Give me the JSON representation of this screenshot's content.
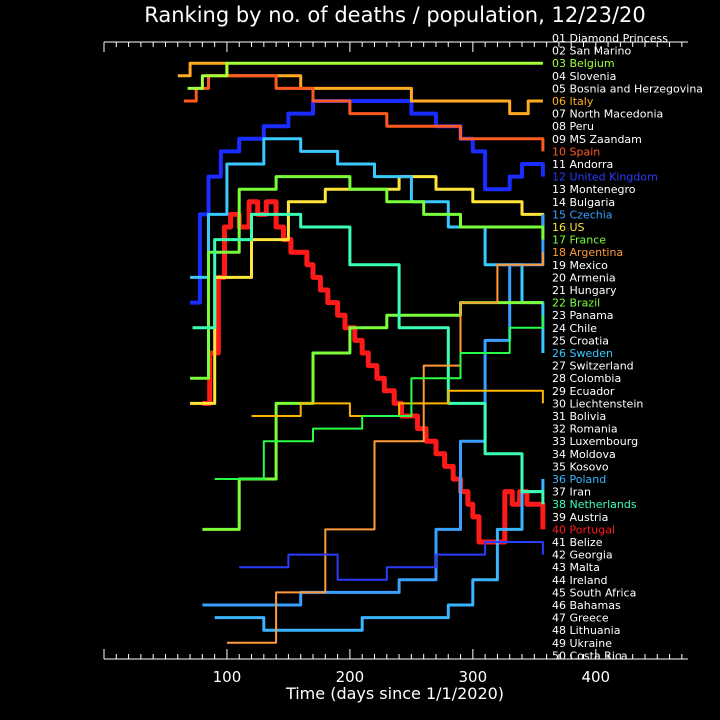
{
  "chart_data": {
    "type": "line",
    "title": "Ranking by no. of deaths / population, 12/23/20",
    "xlabel": "Time (days since 1/1/2020)",
    "xlim": [
      0,
      475
    ],
    "ylim": [
      1,
      50
    ],
    "x_ticks": [
      100,
      200,
      300,
      400
    ],
    "background": "#000000",
    "ranking": [
      {
        "rank": 1,
        "label": "01 Diamond Princess",
        "color": "#ffffff"
      },
      {
        "rank": 2,
        "label": "02 San Marino",
        "color": "#ffffff"
      },
      {
        "rank": 3,
        "label": "03 Belgium",
        "color": "#a6ff3a"
      },
      {
        "rank": 4,
        "label": "04 Slovenia",
        "color": "#ffffff"
      },
      {
        "rank": 5,
        "label": "05 Bosnia and Herzegovina",
        "color": "#ffffff"
      },
      {
        "rank": 6,
        "label": "06 Italy",
        "color": "#ffaa22"
      },
      {
        "rank": 7,
        "label": "07 North Macedonia",
        "color": "#ffffff"
      },
      {
        "rank": 8,
        "label": "08 Peru",
        "color": "#ffffff"
      },
      {
        "rank": 9,
        "label": "09 MS Zaandam",
        "color": "#ffffff"
      },
      {
        "rank": 10,
        "label": "10 Spain",
        "color": "#ff5a1e"
      },
      {
        "rank": 11,
        "label": "11 Andorra",
        "color": "#ffffff"
      },
      {
        "rank": 12,
        "label": "12 United Kingdom",
        "color": "#2a3cff"
      },
      {
        "rank": 13,
        "label": "13 Montenegro",
        "color": "#ffffff"
      },
      {
        "rank": 14,
        "label": "14 Bulgaria",
        "color": "#ffffff"
      },
      {
        "rank": 15,
        "label": "15 Czechia",
        "color": "#3aa0ff"
      },
      {
        "rank": 16,
        "label": "16 US",
        "color": "#ffe43a"
      },
      {
        "rank": 17,
        "label": "17 France",
        "color": "#78ff3a"
      },
      {
        "rank": 18,
        "label": "18 Argentina",
        "color": "#ff9a3a"
      },
      {
        "rank": 19,
        "label": "19 Mexico",
        "color": "#ffffff"
      },
      {
        "rank": 20,
        "label": "20 Armenia",
        "color": "#ffffff"
      },
      {
        "rank": 21,
        "label": "21 Hungary",
        "color": "#ffffff"
      },
      {
        "rank": 22,
        "label": "22 Brazil",
        "color": "#7cff3a"
      },
      {
        "rank": 23,
        "label": "23 Panama",
        "color": "#ffffff"
      },
      {
        "rank": 24,
        "label": "24 Chile",
        "color": "#ffffff"
      },
      {
        "rank": 25,
        "label": "25 Croatia",
        "color": "#ffffff"
      },
      {
        "rank": 26,
        "label": "26 Sweden",
        "color": "#3ac8ff"
      },
      {
        "rank": 27,
        "label": "27 Switzerland",
        "color": "#ffffff"
      },
      {
        "rank": 28,
        "label": "28 Colombia",
        "color": "#ffffff"
      },
      {
        "rank": 29,
        "label": "29 Ecuador",
        "color": "#ffffff"
      },
      {
        "rank": 30,
        "label": "30 Liechtenstein",
        "color": "#ffffff"
      },
      {
        "rank": 31,
        "label": "31 Bolivia",
        "color": "#ffffff"
      },
      {
        "rank": 32,
        "label": "32 Romania",
        "color": "#ffffff"
      },
      {
        "rank": 33,
        "label": "33 Luxembourg",
        "color": "#ffffff"
      },
      {
        "rank": 34,
        "label": "34 Moldova",
        "color": "#ffffff"
      },
      {
        "rank": 35,
        "label": "35 Kosovo",
        "color": "#ffffff"
      },
      {
        "rank": 36,
        "label": "36 Poland",
        "color": "#3ab4ff"
      },
      {
        "rank": 37,
        "label": "37 Iran",
        "color": "#ffffff"
      },
      {
        "rank": 38,
        "label": "38 Netherlands",
        "color": "#3affb4"
      },
      {
        "rank": 39,
        "label": "39 Austria",
        "color": "#ffffff"
      },
      {
        "rank": 40,
        "label": "40 Portugal",
        "color": "#ff1a1a"
      },
      {
        "rank": 41,
        "label": "41 Belize",
        "color": "#ffffff"
      },
      {
        "rank": 42,
        "label": "42 Georgia",
        "color": "#ffffff"
      },
      {
        "rank": 43,
        "label": "43 Malta",
        "color": "#ffffff"
      },
      {
        "rank": 44,
        "label": "44 Ireland",
        "color": "#ffffff"
      },
      {
        "rank": 45,
        "label": "45 South Africa",
        "color": "#ffffff"
      },
      {
        "rank": 46,
        "label": "46 Bahamas",
        "color": "#ffffff"
      },
      {
        "rank": 47,
        "label": "47 Greece",
        "color": "#ffffff"
      },
      {
        "rank": 48,
        "label": "48 Lithuania",
        "color": "#ffffff"
      },
      {
        "rank": 49,
        "label": "49 Ukraine",
        "color": "#ffffff"
      },
      {
        "rank": 50,
        "label": "50 Costa Rica",
        "color": "#ffffff"
      }
    ],
    "series": [
      {
        "color": "#ff1a1a",
        "width": 5,
        "x": [
          80,
          86,
          93,
          98,
          103,
          110,
          118,
          125,
          132,
          140,
          146,
          152,
          160,
          165,
          170,
          176,
          182,
          190,
          196,
          204,
          210,
          215,
          222,
          228,
          236,
          242,
          249,
          255,
          262,
          270,
          277,
          284,
          290,
          296,
          300,
          305,
          310,
          315,
          320,
          326,
          332,
          338,
          344,
          350,
          357
        ],
        "y": [
          30,
          26,
          20,
          16,
          15,
          16,
          14,
          15,
          14,
          16,
          17,
          18,
          18,
          19,
          20,
          21,
          22,
          23,
          24,
          25,
          26,
          27,
          28,
          29,
          30,
          31,
          31,
          32,
          33,
          34,
          35,
          36,
          37,
          38,
          39,
          41,
          41,
          41,
          41,
          37,
          38,
          37,
          38,
          38,
          40
        ]
      },
      {
        "color": "#1a2cff",
        "width": 4,
        "x": [
          70,
          78,
          85,
          95,
          110,
          130,
          150,
          170,
          190,
          210,
          230,
          250,
          270,
          290,
          300,
          310,
          320,
          330,
          340,
          350,
          357
        ],
        "y": [
          22,
          15,
          12,
          10,
          9,
          8,
          7,
          6,
          6,
          6,
          6,
          7,
          8,
          9,
          10,
          13,
          13,
          12,
          11,
          11,
          12
        ]
      },
      {
        "color": "#ffaa22",
        "width": 3,
        "x": [
          60,
          70,
          80,
          100,
          130,
          160,
          190,
          220,
          250,
          280,
          310,
          330,
          345,
          357
        ],
        "y": [
          4,
          3,
          3,
          4,
          4,
          5,
          5,
          5,
          6,
          6,
          6,
          7,
          6,
          6
        ]
      },
      {
        "color": "#ff5a1e",
        "width": 3,
        "x": [
          65,
          75,
          85,
          110,
          140,
          170,
          200,
          230,
          260,
          290,
          320,
          340,
          357
        ],
        "y": [
          6,
          5,
          4,
          4,
          5,
          6,
          7,
          8,
          8,
          9,
          9,
          9,
          10
        ]
      },
      {
        "color": "#a6ff3a",
        "width": 3,
        "x": [
          68,
          80,
          100,
          130,
          170,
          210,
          250,
          290,
          330,
          357
        ],
        "y": [
          5,
          4,
          3,
          3,
          3,
          3,
          3,
          3,
          3,
          3
        ]
      },
      {
        "color": "#ffe43a",
        "width": 3,
        "x": [
          70,
          90,
          120,
          150,
          180,
          210,
          240,
          270,
          300,
          320,
          340,
          357
        ],
        "y": [
          30,
          20,
          17,
          14,
          13,
          13,
          12,
          13,
          14,
          14,
          15,
          16
        ]
      },
      {
        "color": "#3ac8ff",
        "width": 3,
        "x": [
          70,
          85,
          100,
          130,
          160,
          190,
          220,
          250,
          280,
          310,
          340,
          357
        ],
        "y": [
          20,
          15,
          11,
          9,
          10,
          11,
          12,
          14,
          16,
          19,
          22,
          26
        ]
      },
      {
        "color": "#3aa0ff",
        "width": 3,
        "x": [
          80,
          120,
          160,
          200,
          240,
          270,
          290,
          310,
          330,
          357
        ],
        "y": [
          46,
          46,
          45,
          45,
          44,
          40,
          33,
          25,
          19,
          15
        ]
      },
      {
        "color": "#3ab4ff",
        "width": 3,
        "x": [
          90,
          130,
          170,
          210,
          250,
          280,
          300,
          320,
          340,
          357
        ],
        "y": [
          47,
          48,
          48,
          47,
          47,
          46,
          44,
          40,
          37,
          36
        ]
      },
      {
        "color": "#78ff3a",
        "width": 3,
        "x": [
          70,
          85,
          110,
          140,
          170,
          200,
          230,
          260,
          290,
          320,
          357
        ],
        "y": [
          28,
          18,
          13,
          12,
          12,
          13,
          14,
          15,
          16,
          16,
          17
        ]
      },
      {
        "color": "#7cff3a",
        "width": 3,
        "x": [
          80,
          110,
          140,
          170,
          200,
          230,
          260,
          290,
          330,
          357
        ],
        "y": [
          40,
          36,
          30,
          26,
          24,
          23,
          23,
          22,
          22,
          22
        ]
      },
      {
        "color": "#3affb4",
        "width": 3,
        "x": [
          72,
          90,
          120,
          160,
          200,
          240,
          280,
          310,
          340,
          357
        ],
        "y": [
          24,
          17,
          15,
          16,
          19,
          24,
          30,
          34,
          37,
          38
        ]
      },
      {
        "color": "#ff9a3a",
        "width": 2,
        "x": [
          100,
          140,
          180,
          220,
          260,
          290,
          320,
          357
        ],
        "y": [
          49,
          45,
          40,
          33,
          27,
          22,
          19,
          18
        ]
      },
      {
        "color": "#2a3cff",
        "width": 2,
        "x": [
          110,
          150,
          190,
          230,
          270,
          310,
          357
        ],
        "y": [
          43,
          42,
          44,
          43,
          42,
          41,
          42
        ]
      },
      {
        "color": "#ffb400",
        "width": 2,
        "x": [
          120,
          160,
          200,
          240,
          280,
          320,
          357
        ],
        "y": [
          31,
          30,
          31,
          30,
          29,
          29,
          30
        ]
      },
      {
        "color": "#28ff46",
        "width": 2,
        "x": [
          90,
          130,
          170,
          210,
          250,
          290,
          330,
          357
        ],
        "y": [
          36,
          33,
          32,
          31,
          28,
          26,
          24,
          23
        ]
      }
    ]
  }
}
